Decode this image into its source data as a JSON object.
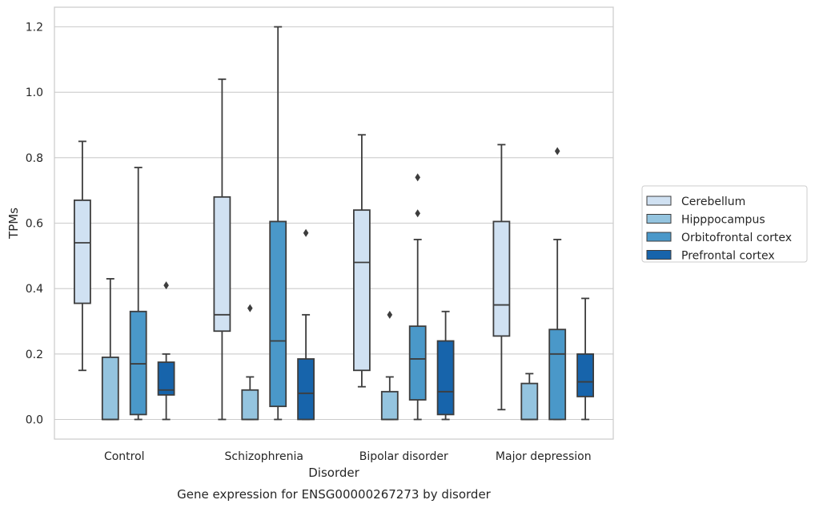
{
  "chart_data": {
    "type": "boxplot",
    "title": "Gene expression for ENSG00000267273 by disorder",
    "xlabel": "Disorder",
    "ylabel": "TPMs",
    "ylim": [
      -0.06,
      1.26
    ],
    "yticks": [
      0.0,
      0.2,
      0.4,
      0.6,
      0.8,
      1.0,
      1.2
    ],
    "ytick_labels": [
      "0.0",
      "0.2",
      "0.4",
      "0.6",
      "0.8",
      "1.0",
      "1.2"
    ],
    "grid": "horizontal",
    "legend_position": "right",
    "categories": [
      "Control",
      "Schizophrenia",
      "Bipolar disorder",
      "Major depression"
    ],
    "series": [
      {
        "name": "Cerebellum",
        "color": "#d0e1f2",
        "boxes": [
          {
            "whislo": 0.15,
            "q1": 0.355,
            "med": 0.54,
            "q3": 0.67,
            "whishi": 0.85,
            "fliers": []
          },
          {
            "whislo": 0.0,
            "q1": 0.27,
            "med": 0.32,
            "q3": 0.68,
            "whishi": 1.04,
            "fliers": []
          },
          {
            "whislo": 0.1,
            "q1": 0.15,
            "med": 0.48,
            "q3": 0.64,
            "whishi": 0.87,
            "fliers": []
          },
          {
            "whislo": 0.03,
            "q1": 0.255,
            "med": 0.35,
            "q3": 0.605,
            "whishi": 0.84,
            "fliers": []
          }
        ]
      },
      {
        "name": "Hipppocampus",
        "color": "#94c4df",
        "boxes": [
          {
            "whislo": 0.0,
            "q1": 0.0,
            "med": 0.0,
            "q3": 0.19,
            "whishi": 0.43,
            "fliers": []
          },
          {
            "whislo": 0.0,
            "q1": 0.0,
            "med": 0.0,
            "q3": 0.09,
            "whishi": 0.13,
            "fliers": [
              0.34
            ]
          },
          {
            "whislo": 0.0,
            "q1": 0.0,
            "med": 0.0,
            "q3": 0.085,
            "whishi": 0.13,
            "fliers": [
              0.32
            ]
          },
          {
            "whislo": 0.0,
            "q1": 0.0,
            "med": 0.0,
            "q3": 0.11,
            "whishi": 0.14,
            "fliers": []
          }
        ]
      },
      {
        "name": "Orbitofrontal cortex",
        "color": "#4a98c9",
        "boxes": [
          {
            "whislo": 0.0,
            "q1": 0.015,
            "med": 0.17,
            "q3": 0.33,
            "whishi": 0.77,
            "fliers": []
          },
          {
            "whislo": 0.0,
            "q1": 0.04,
            "med": 0.24,
            "q3": 0.605,
            "whishi": 1.2,
            "fliers": []
          },
          {
            "whislo": 0.0,
            "q1": 0.06,
            "med": 0.185,
            "q3": 0.285,
            "whishi": 0.55,
            "fliers": [
              0.63,
              0.74
            ]
          },
          {
            "whislo": 0.0,
            "q1": 0.0,
            "med": 0.2,
            "q3": 0.275,
            "whishi": 0.55,
            "fliers": [
              0.82
            ]
          }
        ]
      },
      {
        "name": "Prefrontal cortex",
        "color": "#1764ab",
        "boxes": [
          {
            "whislo": 0.0,
            "q1": 0.075,
            "med": 0.09,
            "q3": 0.175,
            "whishi": 0.2,
            "fliers": [
              0.41
            ]
          },
          {
            "whislo": 0.0,
            "q1": 0.0,
            "med": 0.08,
            "q3": 0.185,
            "whishi": 0.32,
            "fliers": [
              0.57
            ]
          },
          {
            "whislo": 0.0,
            "q1": 0.015,
            "med": 0.085,
            "q3": 0.24,
            "whishi": 0.33,
            "fliers": []
          },
          {
            "whislo": 0.0,
            "q1": 0.07,
            "med": 0.115,
            "q3": 0.2,
            "whishi": 0.37,
            "fliers": []
          }
        ]
      }
    ]
  }
}
